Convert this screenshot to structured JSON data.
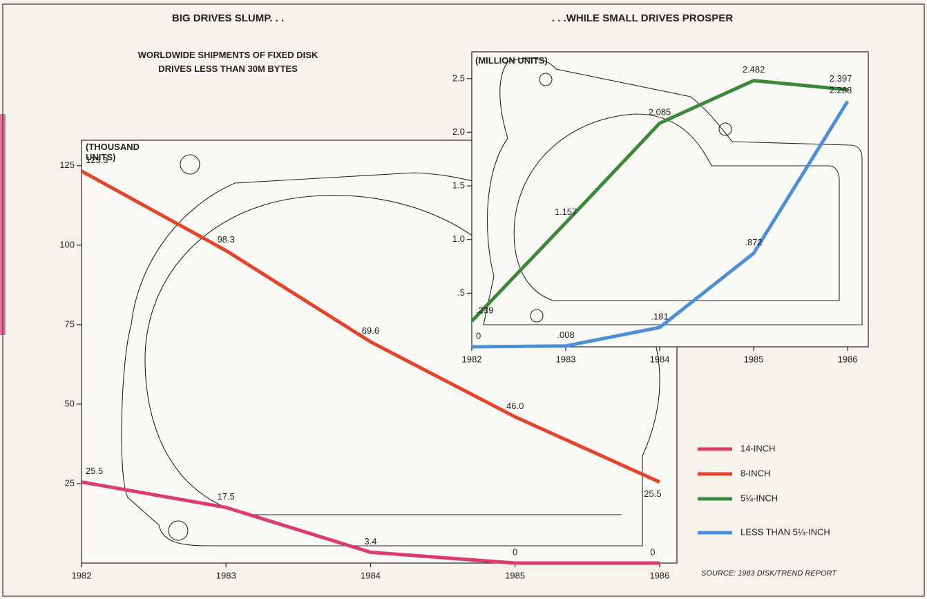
{
  "chart_data": [
    {
      "type": "line",
      "title": "BIG DRIVES SLUMP. . .",
      "subtitle": "WORLDWIDE SHIPMENTS OF FIXED DISK DRIVES LESS THAN 30M BYTES",
      "y_label": "(THOUSAND UNITS)",
      "x": [
        1982,
        1983,
        1984,
        1985,
        1986
      ],
      "xlim": [
        1982,
        1986.12
      ],
      "ylim": [
        0,
        133
      ],
      "yticks": [
        25,
        50,
        75,
        100,
        125
      ],
      "series": [
        {
          "name": "14-INCH",
          "color": "#dd3c68",
          "values": [
            25.5,
            17.5,
            3.4,
            0,
            0
          ]
        },
        {
          "name": "8-INCH",
          "color": "#e5432a",
          "values": [
            123.3,
            98.3,
            69.6,
            46,
            25.5
          ],
          "value_labels": [
            "123.3",
            "98.3",
            "69.6",
            "46.0",
            "25.5"
          ]
        }
      ],
      "source": "SOURCE: 1983 DISK/TREND REPORT"
    },
    {
      "type": "line",
      "title": ". . .WHILE SMALL DRIVES PROSPER",
      "y_label": "(MILLION UNITS)",
      "x": [
        1982,
        1983,
        1984,
        1985,
        1986
      ],
      "xlim": [
        1982,
        1986.22
      ],
      "ylim": [
        0,
        2.75
      ],
      "yticks": [
        {
          "value": 0.5,
          "label": ".5"
        },
        {
          "value": 1,
          "label": "1.0"
        },
        1.5,
        {
          "value": 2,
          "label": "2.0"
        },
        2.5
      ],
      "series": [
        {
          "name": "5¼-INCH",
          "color": "#3a8a3a",
          "values": [
            0.239,
            1.157,
            2.085,
            2.482,
            2.397
          ],
          "value_labels": [
            ".239",
            "1.157",
            "2.085",
            "2.482",
            "2.397"
          ]
        },
        {
          "name": "LESS THAN 5¼-INCH",
          "color": "#4a90d9",
          "values": [
            0,
            0.008,
            0.181,
            0.872,
            2.288
          ],
          "value_labels": [
            "0",
            ".008",
            ".181",
            ".872",
            "2.288"
          ]
        }
      ]
    }
  ]
}
